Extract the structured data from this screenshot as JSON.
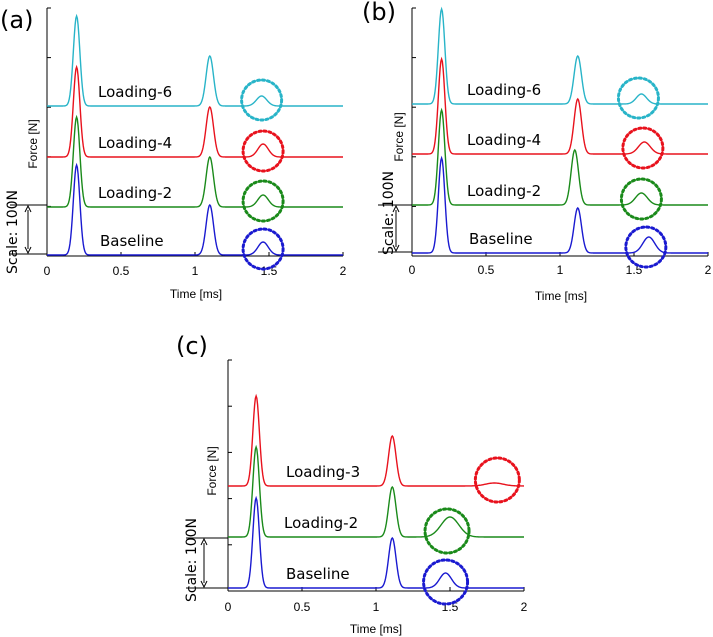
{
  "chart_data": [
    {
      "type": "line",
      "panel": "(a)",
      "xlabel": "Time [ms]",
      "ylabel": "Force [N]",
      "xlim": [
        0,
        2
      ],
      "xticks": [
        "0",
        "0.5",
        "1",
        "1.5",
        "2"
      ],
      "scale_label": "Scale: 100N",
      "series": [
        {
          "name": "Loading-6",
          "color": "#28b4c8",
          "peaks": [
            {
              "x": 0.2,
              "amp": 90,
              "w": 0.022
            },
            {
              "x": 1.1,
              "amp": 50,
              "w": 0.025
            },
            {
              "x": 1.45,
              "amp": 10,
              "w": 0.035
            }
          ],
          "circled_x": 1.45
        },
        {
          "name": "Loading-4",
          "color": "#e8121d",
          "peaks": [
            {
              "x": 0.2,
              "amp": 90,
              "w": 0.022
            },
            {
              "x": 1.1,
              "amp": 50,
              "w": 0.025
            },
            {
              "x": 1.46,
              "amp": 13,
              "w": 0.035
            }
          ],
          "circled_x": 1.46
        },
        {
          "name": "Loading-2",
          "color": "#1a8a1a",
          "peaks": [
            {
              "x": 0.2,
              "amp": 90,
              "w": 0.022
            },
            {
              "x": 1.1,
              "amp": 50,
              "w": 0.025
            },
            {
              "x": 1.46,
              "amp": 12,
              "w": 0.035
            }
          ],
          "circled_x": 1.46
        },
        {
          "name": "Baseline",
          "color": "#1a1ad0",
          "peaks": [
            {
              "x": 0.2,
              "amp": 90,
              "w": 0.022
            },
            {
              "x": 1.1,
              "amp": 50,
              "w": 0.025
            },
            {
              "x": 1.46,
              "amp": 13,
              "w": 0.035
            }
          ],
          "circled_x": 1.46
        }
      ]
    },
    {
      "type": "line",
      "panel": "(b)",
      "xlabel": "Time [ms]",
      "ylabel": "Force [N]",
      "xlim": [
        0,
        2
      ],
      "xticks": [
        "0",
        "0.5",
        "1",
        "1.5",
        "2"
      ],
      "scale_label": "Scale: 100N",
      "series": [
        {
          "name": "Loading-6",
          "color": "#28b4c8",
          "peaks": [
            {
              "x": 0.2,
              "amp": 95,
              "w": 0.022
            },
            {
              "x": 1.12,
              "amp": 48,
              "w": 0.025
            },
            {
              "x": 1.55,
              "amp": 10,
              "w": 0.035
            }
          ],
          "circled_x": 1.53
        },
        {
          "name": "Loading-4",
          "color": "#e8121d",
          "peaks": [
            {
              "x": 0.2,
              "amp": 95,
              "w": 0.022
            },
            {
              "x": 1.12,
              "amp": 55,
              "w": 0.025
            },
            {
              "x": 1.57,
              "amp": 12,
              "w": 0.04
            }
          ],
          "circled_x": 1.56
        },
        {
          "name": "Loading-2",
          "color": "#1a8a1a",
          "peaks": [
            {
              "x": 0.2,
              "amp": 95,
              "w": 0.022
            },
            {
              "x": 1.1,
              "amp": 55,
              "w": 0.025
            },
            {
              "x": 1.55,
              "amp": 12,
              "w": 0.04
            }
          ],
          "circled_x": 1.55
        },
        {
          "name": "Baseline",
          "color": "#1a1ad0",
          "peaks": [
            {
              "x": 0.2,
              "amp": 95,
              "w": 0.022
            },
            {
              "x": 1.12,
              "amp": 45,
              "w": 0.025
            },
            {
              "x": 1.6,
              "amp": 16,
              "w": 0.04
            }
          ],
          "circled_x": 1.58
        }
      ]
    },
    {
      "type": "line",
      "panel": "(c)",
      "xlabel": "Time [ms]",
      "ylabel": "Force [N]",
      "xlim": [
        0,
        2
      ],
      "xticks": [
        "0",
        "0.5",
        "1",
        "1.5",
        "2"
      ],
      "scale_label": "Scale: 100N",
      "series": [
        {
          "name": "Loading-3",
          "color": "#e8121d",
          "peaks": [
            {
              "x": 0.19,
              "amp": 90,
              "w": 0.022
            },
            {
              "x": 1.11,
              "amp": 50,
              "w": 0.025
            },
            {
              "x": 1.8,
              "amp": 3,
              "w": 0.06
            }
          ],
          "circled_x": 1.82
        },
        {
          "name": "Loading-2",
          "color": "#1a8a1a",
          "peaks": [
            {
              "x": 0.19,
              "amp": 90,
              "w": 0.022
            },
            {
              "x": 1.11,
              "amp": 50,
              "w": 0.025
            },
            {
              "x": 1.5,
              "amp": 20,
              "w": 0.06
            }
          ],
          "circled_x": 1.48
        },
        {
          "name": "Baseline",
          "color": "#1a1ad0",
          "peaks": [
            {
              "x": 0.19,
              "amp": 90,
              "w": 0.022
            },
            {
              "x": 1.11,
              "amp": 50,
              "w": 0.025
            },
            {
              "x": 1.47,
              "amp": 15,
              "w": 0.04
            }
          ],
          "circled_x": 1.47
        }
      ]
    }
  ]
}
